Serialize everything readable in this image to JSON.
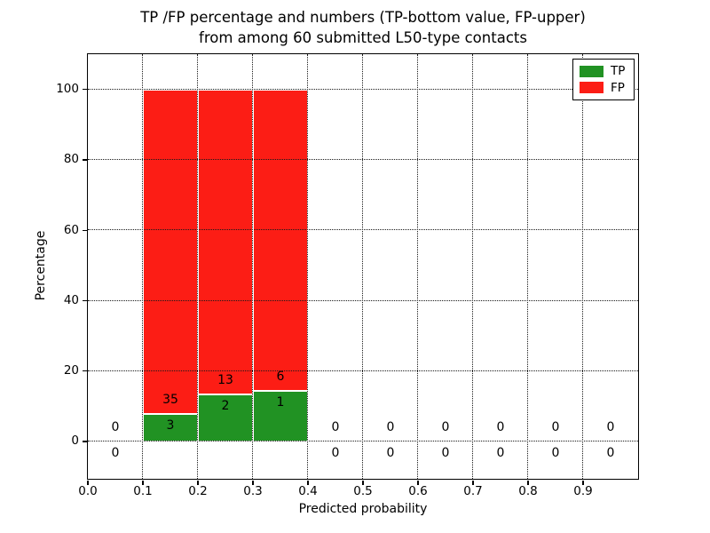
{
  "chart_data": {
    "type": "bar",
    "subtype": "stacked-percentage-histogram",
    "title_line1": "TP /FP percentage and numbers (TP-bottom value, FP-upper)",
    "title_line2": "from among 60 submitted L50-type contacts",
    "xlabel": "Predicted probability",
    "ylabel": "Percentage",
    "xlim": [
      0.0,
      1.0
    ],
    "ylim": [
      -10.6,
      110
    ],
    "xticks": [
      "0.0",
      "0.1",
      "0.2",
      "0.3",
      "0.4",
      "0.5",
      "0.6",
      "0.7",
      "0.8",
      "0.9"
    ],
    "yticks": [
      0,
      20,
      40,
      60,
      80,
      100
    ],
    "grid": "dotted, drawn above bars",
    "total_contacts": 60,
    "colors": {
      "tp": "#219223",
      "fp": "#fc1d15"
    },
    "legend": {
      "position": "upper-right",
      "items": [
        {
          "label": "TP",
          "color": "#219223"
        },
        {
          "label": "FP",
          "color": "#fc1d15"
        }
      ]
    },
    "bins": [
      {
        "x0": 0.0,
        "x1": 0.1,
        "tp": 0,
        "fp": 0,
        "tp_pct": 0,
        "fp_pct": 0
      },
      {
        "x0": 0.1,
        "x1": 0.2,
        "tp": 3,
        "fp": 35,
        "tp_pct": 7.89,
        "fp_pct": 92.11
      },
      {
        "x0": 0.2,
        "x1": 0.3,
        "tp": 2,
        "fp": 13,
        "tp_pct": 13.33,
        "fp_pct": 86.67
      },
      {
        "x0": 0.3,
        "x1": 0.4,
        "tp": 1,
        "fp": 6,
        "tp_pct": 14.29,
        "fp_pct": 85.71
      },
      {
        "x0": 0.4,
        "x1": 0.5,
        "tp": 0,
        "fp": 0,
        "tp_pct": 0,
        "fp_pct": 0
      },
      {
        "x0": 0.5,
        "x1": 0.6,
        "tp": 0,
        "fp": 0,
        "tp_pct": 0,
        "fp_pct": 0
      },
      {
        "x0": 0.6,
        "x1": 0.7,
        "tp": 0,
        "fp": 0,
        "tp_pct": 0,
        "fp_pct": 0
      },
      {
        "x0": 0.7,
        "x1": 0.8,
        "tp": 0,
        "fp": 0,
        "tp_pct": 0,
        "fp_pct": 0
      },
      {
        "x0": 0.8,
        "x1": 0.9,
        "tp": 0,
        "fp": 0,
        "tp_pct": 0,
        "fp_pct": 0
      },
      {
        "x0": 0.9,
        "x1": 1.0,
        "tp": 0,
        "fp": 0,
        "tp_pct": 0,
        "fp_pct": 0
      }
    ]
  }
}
